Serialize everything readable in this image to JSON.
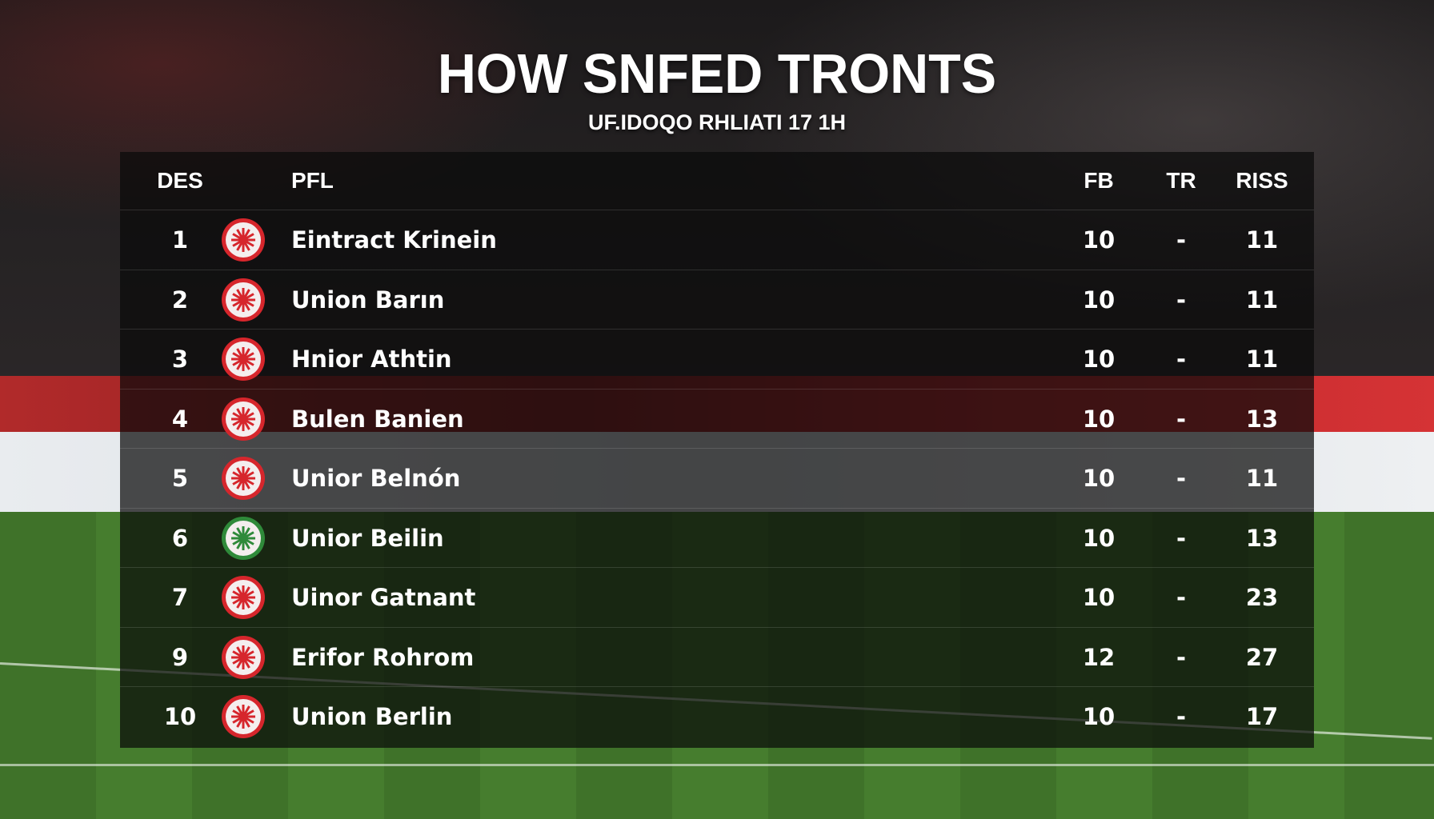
{
  "title": "HOW SNFED TRONTS",
  "subtitle": "UF.IDOQO RHLIATI 17  1H",
  "colors": {
    "badge_red": "#d6262c",
    "badge_green": "#2f8a3a"
  },
  "table": {
    "headers": {
      "pos": "DES",
      "club": "PFL",
      "fb": "FB",
      "tr": "TR",
      "riss": "RISS"
    },
    "rows": [
      {
        "pos": "1",
        "name": "Eintract Krinein",
        "badge": "red",
        "fb": "10",
        "tr": "-",
        "riss": "11"
      },
      {
        "pos": "2",
        "name": "Union Barın",
        "badge": "red",
        "fb": "10",
        "tr": "-",
        "riss": "11"
      },
      {
        "pos": "3",
        "name": "Hnior Athtin",
        "badge": "red",
        "fb": "10",
        "tr": "-",
        "riss": "11"
      },
      {
        "pos": "4",
        "name": "Bulen Banien",
        "badge": "red",
        "fb": "10",
        "tr": "-",
        "riss": "13"
      },
      {
        "pos": "5",
        "name": "Unior Belnón",
        "badge": "red",
        "fb": "10",
        "tr": "-",
        "riss": "11"
      },
      {
        "pos": "6",
        "name": "Unior Beilin",
        "badge": "green",
        "fb": "10",
        "tr": "-",
        "riss": "13"
      },
      {
        "pos": "7",
        "name": "Uinor Gatnant",
        "badge": "red",
        "fb": "10",
        "tr": "-",
        "riss": "23"
      },
      {
        "pos": "9",
        "name": "Erifor Rohrom",
        "badge": "red",
        "fb": "12",
        "tr": "-",
        "riss": "27"
      },
      {
        "pos": "10",
        "name": "Union Berlin",
        "badge": "red",
        "fb": "10",
        "tr": "-",
        "riss": "17"
      }
    ]
  }
}
